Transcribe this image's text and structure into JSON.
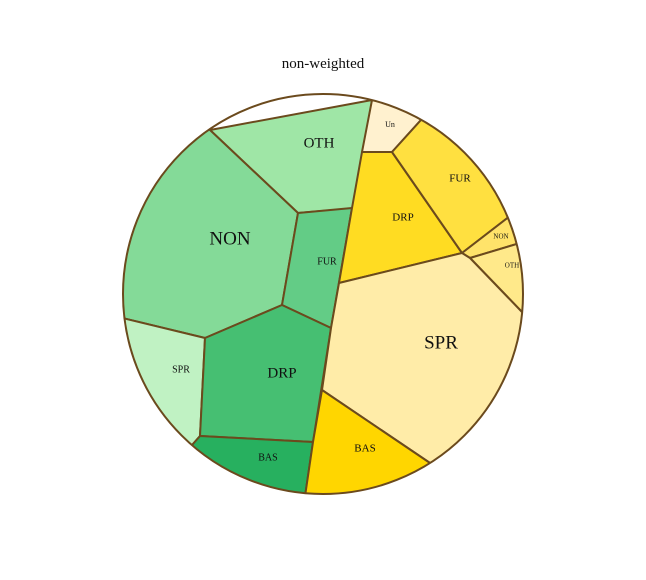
{
  "title": "non-weighted",
  "border_color": "#6b4a1d",
  "cells": [
    {
      "id": "oth-green",
      "label": "OTH",
      "color": "#9fe6a6",
      "text_color": "#111111"
    },
    {
      "id": "non-green",
      "label": "NON",
      "color": "#84da98",
      "text_color": "#111111"
    },
    {
      "id": "fur-green",
      "label": "FUR",
      "color": "#63cc86",
      "text_color": "#111111"
    },
    {
      "id": "spr-green",
      "label": "SPR",
      "color": "#c0f2c3",
      "text_color": "#111111"
    },
    {
      "id": "drp-green",
      "label": "DRP",
      "color": "#46bf72",
      "text_color": "#111111"
    },
    {
      "id": "bas-green",
      "label": "BAS",
      "color": "#27b05f",
      "text_color": "#111111"
    },
    {
      "id": "un-yellow",
      "label": "Un",
      "color": "#fff1cf",
      "text_color": "#7a6a40"
    },
    {
      "id": "drp-yellow",
      "label": "DRP",
      "color": "#ffdc22",
      "text_color": "#111111"
    },
    {
      "id": "fur-yellow",
      "label": "FUR",
      "color": "#ffe040",
      "text_color": "#111111"
    },
    {
      "id": "non-yellow",
      "label": "NON",
      "color": "#ffe36a",
      "text_color": "#6a5a20"
    },
    {
      "id": "oth-yellow",
      "label": "OTH",
      "color": "#ffe98a",
      "text_color": "#6a5a20"
    },
    {
      "id": "spr-yellow",
      "label": "SPR",
      "color": "#ffeca8",
      "text_color": "#111111"
    },
    {
      "id": "bas-yellow",
      "label": "BAS",
      "color": "#ffd600",
      "text_color": "#111111"
    }
  ]
}
